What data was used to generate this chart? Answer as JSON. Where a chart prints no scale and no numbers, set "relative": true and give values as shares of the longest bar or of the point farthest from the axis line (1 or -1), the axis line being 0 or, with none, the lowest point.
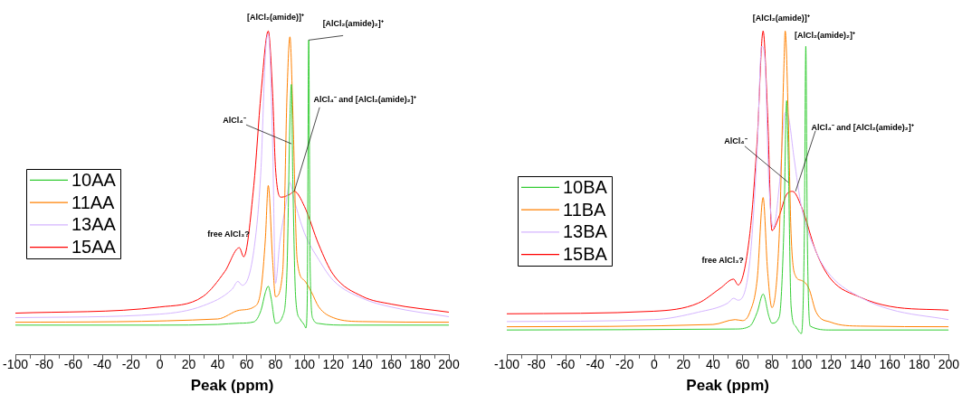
{
  "chart_data": [
    {
      "type": "line",
      "xlabel": "Peak (ppm)",
      "relative": true,
      "legend": "left",
      "marker": "none",
      "grid": false,
      "xlim": [
        -100,
        200
      ],
      "xticks": [
        -100,
        {
          "value": -90,
          "label": null
        },
        -80,
        {
          "value": -70,
          "label": null
        },
        -60,
        {
          "value": -50,
          "label": null
        },
        -40,
        {
          "value": -30,
          "label": null
        },
        -20,
        {
          "value": -10,
          "label": null
        },
        0,
        {
          "value": 10,
          "label": null
        },
        20,
        {
          "value": 30,
          "label": null
        },
        40,
        {
          "value": 50,
          "label": null
        },
        60,
        {
          "value": 70,
          "label": null
        },
        80,
        {
          "value": 90,
          "label": null
        },
        100,
        {
          "value": 110,
          "label": null
        },
        120,
        {
          "value": 130,
          "label": null
        },
        140,
        {
          "value": 150,
          "label": null
        },
        160,
        {
          "value": 170,
          "label": null
        },
        180,
        {
          "value": 190,
          "label": null
        },
        200
      ],
      "series": [
        {
          "name": "10AA",
          "color": "#33cc33",
          "x": [
            -100,
            0,
            40,
            55,
            65,
            70,
            73,
            75,
            77,
            80,
            85,
            88,
            90,
            91,
            92,
            94,
            97,
            100,
            101,
            102,
            103,
            104,
            106,
            110,
            130,
            200
          ],
          "values": [
            0.092,
            0.092,
            0.094,
            0.098,
            0.102,
            0.138,
            0.193,
            0.212,
            0.175,
            0.098,
            0.12,
            0.267,
            0.725,
            0.835,
            0.542,
            0.175,
            0.111,
            0.092,
            0.083,
            0.175,
            0.972,
            0.267,
            0.111,
            0.097,
            0.092,
            0.092
          ]
        },
        {
          "name": "11AA",
          "color": "#ff8000",
          "x": [
            -100,
            40,
            55,
            65,
            70,
            73,
            75,
            78,
            80,
            85,
            88,
            90,
            92,
            95,
            100,
            105,
            110,
            120,
            140,
            200
          ],
          "values": [
            0.101,
            0.111,
            0.138,
            0.148,
            0.203,
            0.358,
            0.523,
            0.294,
            0.18,
            0.258,
            0.808,
            0.982,
            0.753,
            0.294,
            0.23,
            0.193,
            0.148,
            0.115,
            0.103,
            0.101
          ]
        },
        {
          "name": "13AA",
          "color": "#d4b4ff",
          "x": [
            -100,
            0,
            30,
            50,
            54,
            57,
            65,
            70,
            73,
            75,
            78,
            80,
            83,
            87,
            90,
            93,
            100,
            110,
            120,
            140,
            160,
            200
          ],
          "values": [
            0.115,
            0.126,
            0.152,
            0.203,
            0.227,
            0.215,
            0.322,
            0.578,
            0.927,
            0.991,
            0.661,
            0.221,
            0.349,
            0.459,
            0.532,
            0.478,
            0.377,
            0.294,
            0.23,
            0.175,
            0.148,
            0.118
          ]
        },
        {
          "name": "15AA",
          "color": "#ff0000",
          "x": [
            -100,
            0,
            30,
            45,
            55,
            58,
            65,
            70,
            75,
            78,
            80,
            84,
            90,
            93,
            100,
            110,
            120,
            140,
            160,
            200
          ],
          "values": [
            0.129,
            0.148,
            0.181,
            0.258,
            0.331,
            0.303,
            0.523,
            0.808,
            1,
            0.808,
            0.578,
            0.487,
            0.496,
            0.505,
            0.459,
            0.34,
            0.248,
            0.181,
            0.157,
            0.132
          ]
        }
      ],
      "annotations": [
        {
          "text": "[AlCl₂(amide)]⁺",
          "x": 75,
          "y": 1
        },
        {
          "text": "[AlCl₂(amide)₂]⁺",
          "x": 103,
          "y": 0.972
        },
        {
          "text": "AlCl₄⁻",
          "x": 91,
          "y": 0.652
        },
        {
          "text": "AlCl₄⁻ and [AlCl₂(amide)₂]⁺",
          "x": 93,
          "y": 0.505
        },
        {
          "text": "free AlCl₃?",
          "x": 55,
          "y": 0.331
        }
      ]
    },
    {
      "type": "line",
      "xlabel": "Peak (ppm)",
      "relative": true,
      "legend": "left",
      "marker": "none",
      "grid": false,
      "xlim": [
        -100,
        200
      ],
      "xticks": [
        -100,
        {
          "value": -90,
          "label": null
        },
        -80,
        {
          "value": -70,
          "label": null
        },
        -60,
        {
          "value": -50,
          "label": null
        },
        -40,
        {
          "value": -30,
          "label": null
        },
        -20,
        {
          "value": -10,
          "label": null
        },
        0,
        {
          "value": 10,
          "label": null
        },
        20,
        {
          "value": 30,
          "label": null
        },
        40,
        {
          "value": 50,
          "label": null
        },
        60,
        {
          "value": 70,
          "label": null
        },
        80,
        {
          "value": 90,
          "label": null
        },
        100,
        {
          "value": 110,
          "label": null
        },
        120,
        {
          "value": 130,
          "label": null
        },
        140,
        {
          "value": 150,
          "label": null
        },
        160,
        {
          "value": 170,
          "label": null
        },
        180,
        {
          "value": 190,
          "label": null
        },
        200
      ],
      "series": [
        {
          "name": "10BA",
          "color": "#33cc33",
          "x": [
            -100,
            55,
            65,
            70,
            74,
            78,
            80,
            85,
            88,
            90,
            91,
            93,
            96,
            100,
            102,
            103,
            104,
            106,
            120,
            200
          ],
          "values": [
            0.077,
            0.08,
            0.089,
            0.132,
            0.188,
            0.118,
            0.098,
            0.118,
            0.374,
            0.785,
            0.627,
            0.15,
            0.089,
            0.066,
            0.374,
            0.953,
            0.374,
            0.089,
            0.077,
            0.077
          ]
        },
        {
          "name": "11BA",
          "color": "#ff8000",
          "x": [
            -100,
            40,
            55,
            60,
            65,
            70,
            74,
            77,
            80,
            85,
            88,
            89,
            91,
            93,
            96,
            100,
            105,
            110,
            120,
            140,
            200
          ],
          "values": [
            0.087,
            0.094,
            0.109,
            0.106,
            0.132,
            0.234,
            0.486,
            0.262,
            0.146,
            0.374,
            0.869,
            1,
            0.748,
            0.374,
            0.244,
            0.23,
            0.206,
            0.132,
            0.101,
            0.089,
            0.087
          ]
        },
        {
          "name": "13BA",
          "color": "#d4b4ff",
          "x": [
            -100,
            0,
            30,
            50,
            54,
            57,
            65,
            70,
            73,
            75,
            78,
            81,
            85,
            89,
            91,
            95,
            100,
            110,
            120,
            140,
            160,
            200
          ],
          "values": [
            0.103,
            0.109,
            0.132,
            0.16,
            0.175,
            0.169,
            0.29,
            0.636,
            0.953,
            0.925,
            0.524,
            0.393,
            0.524,
            0.748,
            0.739,
            0.608,
            0.458,
            0.318,
            0.244,
            0.178,
            0.141,
            0.109
          ]
        },
        {
          "name": "15BA",
          "color": "#ff0000",
          "x": [
            -100,
            0,
            30,
            45,
            54,
            57,
            65,
            70,
            74,
            77,
            80,
            85,
            90,
            94,
            100,
            110,
            120,
            140,
            160,
            200
          ],
          "values": [
            0.127,
            0.135,
            0.16,
            0.206,
            0.234,
            0.216,
            0.374,
            0.664,
            1,
            0.748,
            0.384,
            0.43,
            0.496,
            0.505,
            0.458,
            0.318,
            0.234,
            0.178,
            0.15,
            0.138
          ]
        }
      ],
      "annotations": [
        {
          "text": "[AlCl₂(amide)]⁺",
          "x": 74,
          "y": 1
        },
        {
          "text": "[AlCl₂(amide)₂]⁺",
          "x": 103,
          "y": 0.953
        },
        {
          "text": "AlCl₄⁻",
          "x": 91,
          "y": 0.533
        },
        {
          "text": "AlCl₄⁻ and [AlCl₂(amide)₂]⁺",
          "x": 96,
          "y": 0.505
        },
        {
          "text": "free AlCl₃?",
          "x": 54,
          "y": 0.234
        }
      ]
    }
  ]
}
